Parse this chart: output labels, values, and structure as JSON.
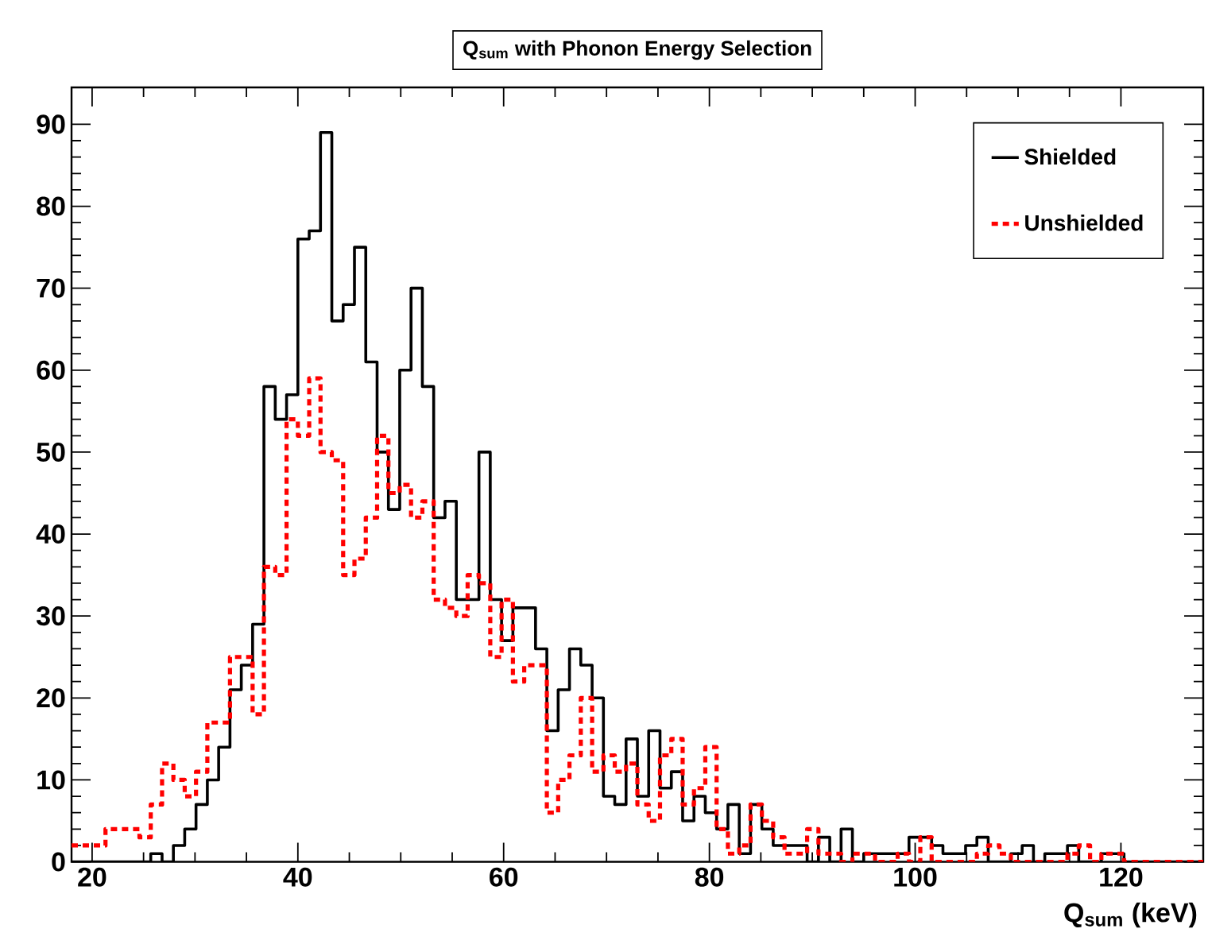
{
  "chart_data": {
    "type": "histogram",
    "title": "Q$_{sum}$ with Phonon Energy Selection",
    "xlabel": "Q$_{sum}$ (keV)",
    "bins": [
      18,
      19.1,
      20.2,
      21.3,
      22.4,
      23.5,
      24.6,
      25.7,
      26.8,
      27.9,
      29,
      30.1,
      31.2,
      32.3,
      33.4,
      34.5,
      35.6,
      36.7,
      37.8,
      38.9,
      40,
      41.1,
      42.2,
      43.3,
      44.4,
      45.5,
      46.6,
      47.7,
      48.8,
      49.9,
      51,
      52.1,
      53.2,
      54.3,
      55.4,
      56.5,
      57.6,
      58.7,
      59.8,
      60.9,
      62,
      63.1,
      64.2,
      65.3,
      66.4,
      67.5,
      68.6,
      69.7,
      70.8,
      71.9,
      73,
      74.1,
      75.2,
      76.3,
      77.4,
      78.5,
      79.6,
      80.7,
      81.8,
      82.9,
      84,
      85.1,
      86.2,
      87.3,
      88.4,
      89.5,
      90.6,
      91.7,
      92.8,
      93.9,
      95,
      96.1,
      97.2,
      98.3,
      99.4,
      100.5,
      101.6,
      102.7,
      103.8,
      104.9,
      106,
      107.1,
      108.2,
      109.3,
      110.4,
      111.5,
      112.6,
      113.7,
      114.8,
      115.9,
      117,
      118.1,
      119.2,
      120.3,
      121.4,
      122.5,
      123.6,
      124.7,
      125.8,
      126.9,
      128
    ],
    "series": [
      {
        "name": "Shielded",
        "color": "#000000",
        "line_style": "solid",
        "values": [
          0,
          0,
          0,
          0,
          0,
          0,
          0,
          1,
          0,
          2,
          4,
          7,
          10,
          14,
          21,
          24,
          29,
          58,
          54,
          57,
          76,
          77,
          89,
          66,
          68,
          75,
          61,
          50,
          43,
          60,
          70,
          58,
          42,
          44,
          32,
          32,
          50,
          32,
          27,
          31,
          31,
          26,
          16,
          21,
          26,
          24,
          20,
          8,
          7,
          15,
          8,
          16,
          9,
          11,
          5,
          8,
          6,
          4,
          7,
          1,
          7,
          4,
          2,
          2,
          2,
          0,
          3,
          0,
          4,
          0,
          1,
          1,
          1,
          1,
          3,
          3,
          2,
          1,
          1,
          2,
          3,
          0,
          0,
          1,
          2,
          0,
          1,
          1,
          2,
          0,
          0,
          1,
          1,
          0,
          0,
          0,
          0,
          0,
          0,
          0
        ]
      },
      {
        "name": "Unshielded",
        "color": "#ff0000",
        "line_style": "dashed",
        "values": [
          2,
          2,
          2,
          4,
          4,
          4,
          3,
          7,
          12,
          10,
          8,
          11,
          17,
          17,
          25,
          25,
          18,
          36,
          35,
          54,
          52,
          59,
          50,
          49,
          35,
          37,
          42,
          52,
          45,
          46,
          42,
          44,
          32,
          31,
          30,
          35,
          34,
          25,
          32,
          22,
          24,
          24,
          6,
          10,
          13,
          20,
          11,
          13,
          11,
          12,
          7,
          5,
          13,
          15,
          7,
          9,
          14,
          4,
          1,
          2,
          7,
          5,
          3,
          1,
          1,
          4,
          1,
          1,
          0,
          1,
          1,
          0,
          0,
          1,
          0,
          3,
          0,
          0,
          0,
          0,
          1,
          2,
          1,
          0,
          0,
          0,
          0,
          0,
          1,
          2,
          0,
          1,
          1,
          0,
          0,
          0,
          0,
          0,
          0,
          0
        ]
      }
    ],
    "xlim": [
      18,
      128
    ],
    "ylim": [
      0,
      94.5
    ],
    "xticks": [
      20,
      40,
      60,
      80,
      100,
      120
    ],
    "yticks": [
      0,
      10,
      20,
      30,
      40,
      50,
      60,
      70,
      80,
      90
    ],
    "legend": "top right"
  }
}
